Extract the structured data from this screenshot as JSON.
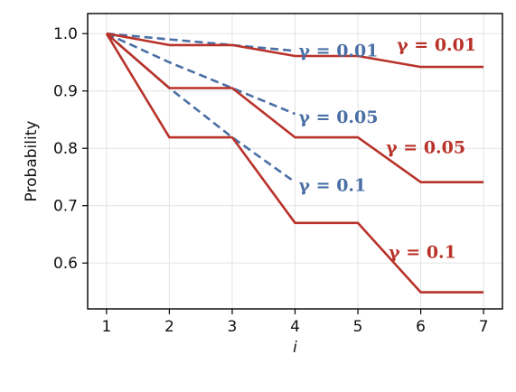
{
  "chart_data": {
    "type": "line",
    "xlabel": "i",
    "ylabel": "Probability",
    "xlim": [
      0.7,
      7.3
    ],
    "ylim": [
      0.52,
      1.035
    ],
    "xticks": [
      1,
      2,
      3,
      4,
      5,
      6,
      7
    ],
    "yticks": [
      0.6,
      0.7,
      0.8,
      0.9,
      1.0
    ],
    "ytick_labels": [
      "0.6",
      "0.7",
      "0.8",
      "0.9",
      "1.0"
    ],
    "grid": true,
    "colors": {
      "dashed": "#4a6fa5",
      "solid": "#b8322a"
    },
    "series": [
      {
        "name": "γ = 0.01",
        "style": "dashed",
        "x": [
          1,
          2,
          3,
          4
        ],
        "y": [
          1.0,
          0.99,
          0.98,
          0.97
        ],
        "label": "γ = 0.01"
      },
      {
        "name": "γ = 0.05",
        "style": "dashed",
        "x": [
          1,
          2,
          3,
          4
        ],
        "y": [
          1.0,
          0.95,
          0.905,
          0.86
        ],
        "label": "γ = 0.05"
      },
      {
        "name": "γ = 0.1",
        "style": "dashed",
        "x": [
          1,
          2,
          3,
          4
        ],
        "y": [
          1.0,
          0.905,
          0.819,
          0.741
        ],
        "label": "γ = 0.1"
      },
      {
        "name": "γ = 0.01",
        "style": "solid",
        "x": [
          1,
          2,
          3,
          4,
          5,
          6,
          7
        ],
        "y": [
          1.0,
          0.98,
          0.98,
          0.961,
          0.961,
          0.942,
          0.942
        ],
        "label": "γ = 0.01"
      },
      {
        "name": "γ = 0.05",
        "style": "solid",
        "x": [
          1,
          2,
          3,
          4,
          5,
          6,
          7
        ],
        "y": [
          1.0,
          0.905,
          0.905,
          0.819,
          0.819,
          0.741,
          0.741
        ],
        "label": "γ = 0.05"
      },
      {
        "name": "γ = 0.1",
        "style": "solid",
        "x": [
          1,
          2,
          3,
          4,
          5,
          6,
          7
        ],
        "y": [
          1.0,
          0.819,
          0.819,
          0.67,
          0.67,
          0.549,
          0.549
        ],
        "label": "γ = 0.1"
      }
    ]
  }
}
